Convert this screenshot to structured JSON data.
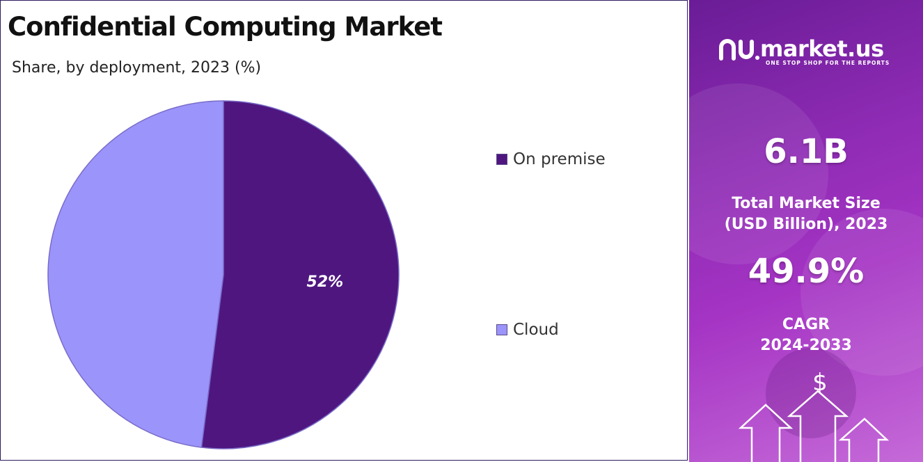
{
  "header": {
    "title": "Confidential Computing Market",
    "subtitle": "Share, by deployment, 2023 (%)"
  },
  "chart_data": {
    "type": "pie",
    "title": "Confidential Computing Market",
    "subtitle": "Share, by deployment, 2023 (%)",
    "categories": [
      "On premise",
      "Cloud"
    ],
    "values": [
      52,
      48
    ],
    "data_labels": [
      "52%",
      ""
    ],
    "colors": [
      "#4f1680",
      "#9a94fb"
    ],
    "legend_position": "right"
  },
  "legend": {
    "items": [
      {
        "label": "On premise",
        "color": "#4f1680"
      },
      {
        "label": "Cloud",
        "color": "#9a94fb"
      }
    ]
  },
  "panel": {
    "logo_text": "market.us",
    "logo_tagline": "ONE STOP SHOP FOR THE REPORTS",
    "market_size_value": "6.1B",
    "market_size_label_line1": "Total Market Size",
    "market_size_label_line2": "(USD Billion), 2023",
    "cagr_value": "49.9%",
    "cagr_label_line1": "CAGR",
    "cagr_label_line2": "2024-2033",
    "dollar_symbol": "$",
    "background_color": "#8e2bb4"
  }
}
